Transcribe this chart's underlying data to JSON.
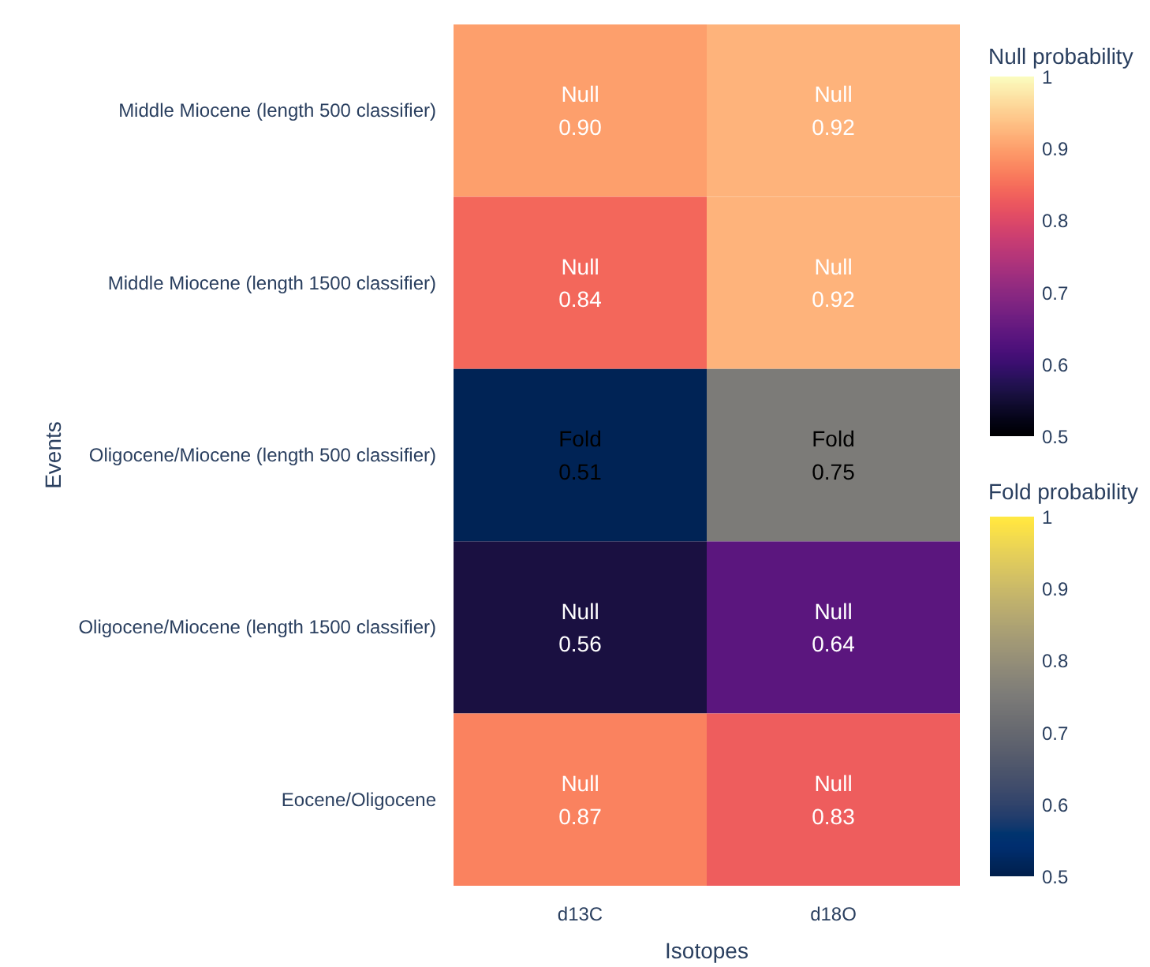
{
  "chart_data": [
    {
      "type": "heatmap",
      "xlabel": "Isotopes",
      "ylabel": "Events",
      "clabel": "Null probability",
      "categories": [
        "d13C",
        "d18O"
      ],
      "y_categories": [
        "Middle Miocene (length 500 classifier)",
        "Middle Miocene (length 1500 classifier)",
        "Oligocene/Miocene (length 500 classifier)",
        "Oligocene/Miocene (length 1500 classifier)",
        "Eocene/Oligocene"
      ],
      "cells": [
        [
          0.9,
          0.92
        ],
        [
          0.84,
          0.92
        ],
        [
          null,
          null
        ],
        [
          0.56,
          0.64
        ],
        [
          0.87,
          0.83
        ]
      ],
      "cell_labels": [
        [
          "Null\n0.90",
          "Null\n0.92"
        ],
        [
          "Null\n0.84",
          "Null\n0.92"
        ],
        [
          null,
          null
        ],
        [
          "Null\n0.56",
          "Null\n0.64"
        ],
        [
          "Null\n0.87",
          "Null\n0.83"
        ]
      ],
      "clim": [
        0.5,
        1
      ],
      "cticks": [
        0.5,
        0.6,
        0.7,
        0.8,
        0.9,
        1
      ]
    },
    {
      "type": "heatmap",
      "clabel": "Fold probability",
      "tick_labels": false,
      "categories": [
        "d13C",
        "d18O"
      ],
      "y_categories": [
        "Middle Miocene (length 500 classifier)",
        "Middle Miocene (length 1500 classifier)",
        "Oligocene/Miocene (length 500 classifier)",
        "Oligocene/Miocene (length 1500 classifier)",
        "Eocene/Oligocene"
      ],
      "cells": [
        [
          null,
          null
        ],
        [
          null,
          null
        ],
        [
          0.51,
          0.75
        ],
        [
          null,
          null
        ],
        [
          null,
          null
        ]
      ],
      "cell_labels": [
        [
          null,
          null
        ],
        [
          null,
          null
        ],
        [
          "Fold\n0.51",
          "Fold\n0.75"
        ],
        [
          null,
          null
        ],
        [
          null,
          null
        ]
      ],
      "clim": [
        0.5,
        1
      ],
      "cticks": [
        0.5,
        0.6,
        0.7,
        0.8,
        0.9,
        1
      ]
    }
  ]
}
